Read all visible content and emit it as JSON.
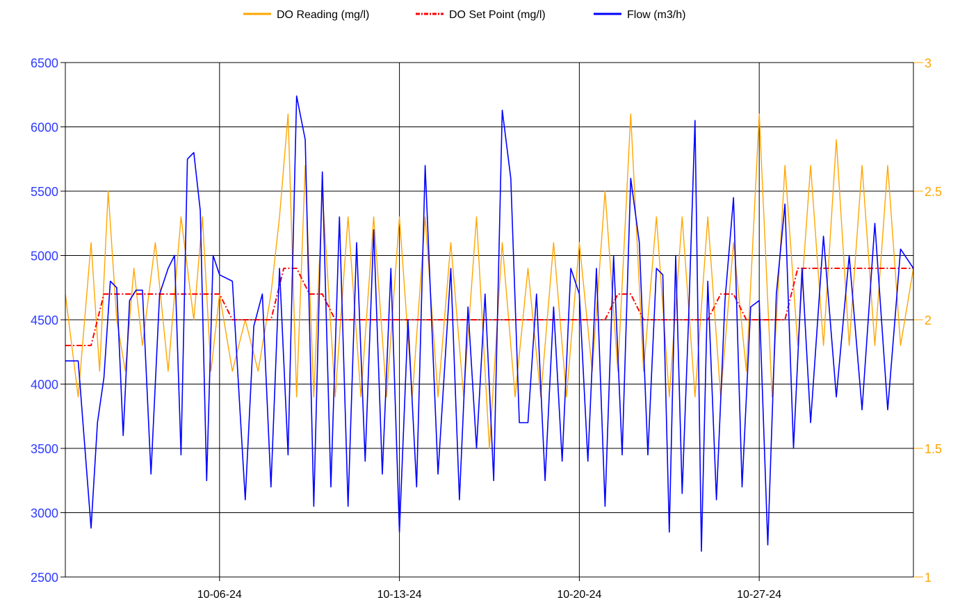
{
  "chart_data": {
    "type": "line",
    "legend_position": "top-center",
    "grid": true,
    "colors": {
      "do_reading": "#FFA500",
      "do_set_point": "#FF0000",
      "flow": "#0000FF",
      "left_axis_labels": "#2E3BFF",
      "right_axis_labels": "#FFA500"
    },
    "x_range": [
      "2024-09-30",
      "2024-11-02"
    ],
    "x_ticks": [
      {
        "date": "2024-10-06",
        "label": "10-06-24"
      },
      {
        "date": "2024-10-13",
        "label": "10-13-24"
      },
      {
        "date": "2024-10-20",
        "label": "10-20-24"
      },
      {
        "date": "2024-10-27",
        "label": "10-27-24"
      }
    ],
    "y_left": {
      "min": 2500,
      "max": 6500,
      "ticks": [
        "2500",
        "3000",
        "3500",
        "4000",
        "4500",
        "5000",
        "5500",
        "6000",
        "6500"
      ]
    },
    "y_right": {
      "min": 1,
      "max": 3,
      "ticks": [
        "1",
        "1.5",
        "2",
        "2.5",
        "3"
      ]
    },
    "series": [
      {
        "name": "DO Reading (mg/l)",
        "axis": "right",
        "style": "solid",
        "points": [
          [
            "2024-09-30",
            2.1
          ],
          [
            "2024-09-30",
            1.7
          ],
          [
            "2024-10-01",
            2.3
          ],
          [
            "2024-10-01",
            1.8
          ],
          [
            "2024-10-01",
            2.5
          ],
          [
            "2024-10-02",
            2.0
          ],
          [
            "2024-10-02",
            1.8
          ],
          [
            "2024-10-02",
            2.2
          ],
          [
            "2024-10-03",
            1.9
          ],
          [
            "2024-10-03",
            2.3
          ],
          [
            "2024-10-04",
            1.8
          ],
          [
            "2024-10-04",
            2.4
          ],
          [
            "2024-10-05",
            2.0
          ],
          [
            "2024-10-05",
            2.4
          ],
          [
            "2024-10-05",
            1.8
          ],
          [
            "2024-10-06",
            2.1
          ],
          [
            "2024-10-06",
            1.8
          ],
          [
            "2024-10-07",
            2.0
          ],
          [
            "2024-10-07",
            1.8
          ],
          [
            "2024-10-08",
            2.1
          ],
          [
            "2024-10-08",
            2.4
          ],
          [
            "2024-10-08",
            2.8
          ],
          [
            "2024-10-09",
            1.7
          ],
          [
            "2024-10-09",
            2.6
          ],
          [
            "2024-10-09",
            1.7
          ],
          [
            "2024-10-10",
            2.5
          ],
          [
            "2024-10-10",
            1.7
          ],
          [
            "2024-10-11",
            2.4
          ],
          [
            "2024-10-11",
            1.7
          ],
          [
            "2024-10-12",
            2.4
          ],
          [
            "2024-10-12",
            1.7
          ],
          [
            "2024-10-13",
            2.4
          ],
          [
            "2024-10-13",
            1.7
          ],
          [
            "2024-10-14",
            2.4
          ],
          [
            "2024-10-14",
            1.7
          ],
          [
            "2024-10-15",
            2.3
          ],
          [
            "2024-10-15",
            1.7
          ],
          [
            "2024-10-16",
            2.4
          ],
          [
            "2024-10-16",
            1.5
          ],
          [
            "2024-10-17",
            2.3
          ],
          [
            "2024-10-17",
            1.7
          ],
          [
            "2024-10-18",
            2.2
          ],
          [
            "2024-10-18",
            1.7
          ],
          [
            "2024-10-19",
            2.3
          ],
          [
            "2024-10-19",
            1.7
          ],
          [
            "2024-10-20",
            2.3
          ],
          [
            "2024-10-20",
            1.8
          ],
          [
            "2024-10-21",
            2.5
          ],
          [
            "2024-10-21",
            1.8
          ],
          [
            "2024-10-22",
            2.8
          ],
          [
            "2024-10-22",
            1.8
          ],
          [
            "2024-10-23",
            2.4
          ],
          [
            "2024-10-23",
            1.7
          ],
          [
            "2024-10-24",
            2.4
          ],
          [
            "2024-10-24",
            1.7
          ],
          [
            "2024-10-25",
            2.4
          ],
          [
            "2024-10-25",
            1.7
          ],
          [
            "2024-10-26",
            2.3
          ],
          [
            "2024-10-26",
            1.8
          ],
          [
            "2024-10-27",
            2.8
          ],
          [
            "2024-10-27",
            1.7
          ],
          [
            "2024-10-28",
            2.6
          ],
          [
            "2024-10-28",
            1.9
          ],
          [
            "2024-10-29",
            2.6
          ],
          [
            "2024-10-29",
            1.9
          ],
          [
            "2024-10-30",
            2.7
          ],
          [
            "2024-10-30",
            1.9
          ],
          [
            "2024-10-31",
            2.6
          ],
          [
            "2024-10-31",
            1.9
          ],
          [
            "2024-11-01",
            2.6
          ],
          [
            "2024-11-01",
            1.9
          ],
          [
            "2024-11-02",
            2.2
          ]
        ]
      },
      {
        "name": "DO Set Point (mg/l)",
        "axis": "right",
        "style": "dash-dot",
        "points": [
          [
            "2024-09-30",
            1.9
          ],
          [
            "2024-10-01",
            1.9
          ],
          [
            "2024-10-01",
            2.1
          ],
          [
            "2024-10-04",
            2.1
          ],
          [
            "2024-10-06",
            2.1
          ],
          [
            "2024-10-06",
            2.0
          ],
          [
            "2024-10-08",
            2.0
          ],
          [
            "2024-10-08",
            2.2
          ],
          [
            "2024-10-09",
            2.2
          ],
          [
            "2024-10-09",
            2.1
          ],
          [
            "2024-10-10",
            2.1
          ],
          [
            "2024-10-10",
            2.0
          ],
          [
            "2024-10-21",
            2.0
          ],
          [
            "2024-10-21",
            2.1
          ],
          [
            "2024-10-22",
            2.1
          ],
          [
            "2024-10-22",
            2.0
          ],
          [
            "2024-10-25",
            2.0
          ],
          [
            "2024-10-25",
            2.1
          ],
          [
            "2024-10-26",
            2.1
          ],
          [
            "2024-10-26",
            2.0
          ],
          [
            "2024-10-28",
            2.0
          ],
          [
            "2024-10-28",
            2.2
          ],
          [
            "2024-11-02",
            2.2
          ]
        ]
      },
      {
        "name": "Flow (m3/h)",
        "axis": "left",
        "style": "solid",
        "points": [
          [
            "2024-09-30",
            4180
          ],
          [
            "2024-09-30",
            4180
          ],
          [
            "2024-10-01",
            2880
          ],
          [
            "2024-10-01",
            3700
          ],
          [
            "2024-10-01",
            4050
          ],
          [
            "2024-10-01",
            4800
          ],
          [
            "2024-10-02",
            4750
          ],
          [
            "2024-10-02",
            3600
          ],
          [
            "2024-10-02",
            4650
          ],
          [
            "2024-10-02",
            4730
          ],
          [
            "2024-10-03",
            4730
          ],
          [
            "2024-10-03",
            3300
          ],
          [
            "2024-10-03",
            4700
          ],
          [
            "2024-10-04",
            4900
          ],
          [
            "2024-10-04",
            5000
          ],
          [
            "2024-10-04",
            3450
          ],
          [
            "2024-10-04",
            5750
          ],
          [
            "2024-10-05",
            5800
          ],
          [
            "2024-10-05",
            5350
          ],
          [
            "2024-10-05",
            3250
          ],
          [
            "2024-10-05",
            5000
          ],
          [
            "2024-10-06",
            4850
          ],
          [
            "2024-10-06",
            4800
          ],
          [
            "2024-10-07",
            3100
          ],
          [
            "2024-10-07",
            4450
          ],
          [
            "2024-10-07",
            4700
          ],
          [
            "2024-10-08",
            3200
          ],
          [
            "2024-10-08",
            4900
          ],
          [
            "2024-10-08",
            3450
          ],
          [
            "2024-10-09",
            6240
          ],
          [
            "2024-10-09",
            5900
          ],
          [
            "2024-10-09",
            3050
          ],
          [
            "2024-10-10",
            5650
          ],
          [
            "2024-10-10",
            3200
          ],
          [
            "2024-10-10",
            5300
          ],
          [
            "2024-10-11",
            3050
          ],
          [
            "2024-10-11",
            5100
          ],
          [
            "2024-10-11",
            3400
          ],
          [
            "2024-10-12",
            5200
          ],
          [
            "2024-10-12",
            3300
          ],
          [
            "2024-10-12",
            4900
          ],
          [
            "2024-10-13",
            2850
          ],
          [
            "2024-10-13",
            4500
          ],
          [
            "2024-10-13",
            3200
          ],
          [
            "2024-10-14",
            5700
          ],
          [
            "2024-10-14",
            3300
          ],
          [
            "2024-10-15",
            4900
          ],
          [
            "2024-10-15",
            3100
          ],
          [
            "2024-10-15",
            4600
          ],
          [
            "2024-10-16",
            3500
          ],
          [
            "2024-10-16",
            4700
          ],
          [
            "2024-10-16",
            3250
          ],
          [
            "2024-10-17",
            6130
          ],
          [
            "2024-10-17",
            5600
          ],
          [
            "2024-10-17",
            3700
          ],
          [
            "2024-10-18",
            3700
          ],
          [
            "2024-10-18",
            4700
          ],
          [
            "2024-10-18",
            3250
          ],
          [
            "2024-10-19",
            4600
          ],
          [
            "2024-10-19",
            3400
          ],
          [
            "2024-10-19",
            4900
          ],
          [
            "2024-10-20",
            4700
          ],
          [
            "2024-10-20",
            3400
          ],
          [
            "2024-10-20",
            4900
          ],
          [
            "2024-10-21",
            3050
          ],
          [
            "2024-10-21",
            5000
          ],
          [
            "2024-10-21",
            3450
          ],
          [
            "2024-10-22",
            5600
          ],
          [
            "2024-10-22",
            5100
          ],
          [
            "2024-10-22",
            3450
          ],
          [
            "2024-10-23",
            4900
          ],
          [
            "2024-10-23",
            4850
          ],
          [
            "2024-10-23",
            2850
          ],
          [
            "2024-10-23",
            5000
          ],
          [
            "2024-10-24",
            3150
          ],
          [
            "2024-10-24",
            4500
          ],
          [
            "2024-10-24",
            6050
          ],
          [
            "2024-10-24",
            2700
          ],
          [
            "2024-10-25",
            4800
          ],
          [
            "2024-10-25",
            3100
          ],
          [
            "2024-10-25",
            4650
          ],
          [
            "2024-10-26",
            5450
          ],
          [
            "2024-10-26",
            3200
          ],
          [
            "2024-10-26",
            4600
          ],
          [
            "2024-10-27",
            4650
          ],
          [
            "2024-10-27",
            2750
          ],
          [
            "2024-10-27",
            4700
          ],
          [
            "2024-10-28",
            5400
          ],
          [
            "2024-10-28",
            3500
          ],
          [
            "2024-10-28",
            4900
          ],
          [
            "2024-10-29",
            3700
          ],
          [
            "2024-10-29",
            5150
          ],
          [
            "2024-10-30",
            3900
          ],
          [
            "2024-10-30",
            5000
          ],
          [
            "2024-10-31",
            3800
          ],
          [
            "2024-10-31",
            5250
          ],
          [
            "2024-11-01",
            3800
          ],
          [
            "2024-11-01",
            5050
          ],
          [
            "2024-11-02",
            4900
          ]
        ]
      }
    ]
  }
}
